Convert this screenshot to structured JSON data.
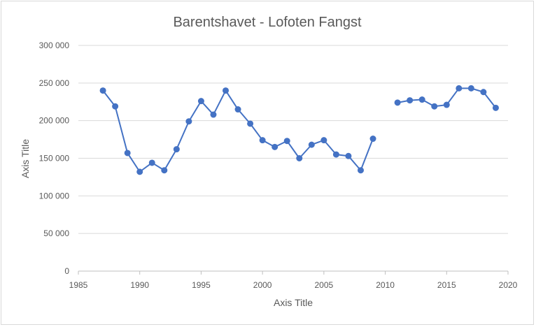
{
  "chart_data": {
    "type": "scatter",
    "title": "Barentshavet - Lofoten Fangst",
    "xlabel": "Axis Title",
    "ylabel": "Axis Title",
    "xlim": [
      1985,
      2020
    ],
    "ylim": [
      0,
      300000
    ],
    "x_ticks": [
      "1985",
      "1990",
      "1995",
      "2000",
      "2005",
      "2010",
      "2015",
      "2020"
    ],
    "y_ticks": [
      "0",
      "50 000",
      "100 000",
      "150 000",
      "200 000",
      "250 000",
      "300 000"
    ],
    "grid": "horizontal",
    "legend": "none",
    "series_color": "#4472c4",
    "segments": [
      {
        "x": [
          1987,
          1988,
          1989,
          1990,
          1991,
          1992,
          1993,
          1994,
          1995,
          1996,
          1997,
          1998,
          1999,
          2000,
          2001,
          2002,
          2003,
          2004,
          2005,
          2006,
          2007,
          2008,
          2009
        ],
        "y": [
          240000,
          219000,
          157000,
          132000,
          144000,
          134000,
          162000,
          199000,
          226000,
          208000,
          240000,
          215000,
          196000,
          174000,
          165000,
          173000,
          150000,
          168000,
          174000,
          155000,
          153000,
          134000,
          176000
        ]
      },
      {
        "x": [
          2011,
          2012,
          2013,
          2014,
          2015,
          2016,
          2017,
          2018,
          2019
        ],
        "y": [
          224000,
          227000,
          228000,
          219000,
          221000,
          243000,
          243000,
          238000,
          217000
        ]
      }
    ]
  }
}
